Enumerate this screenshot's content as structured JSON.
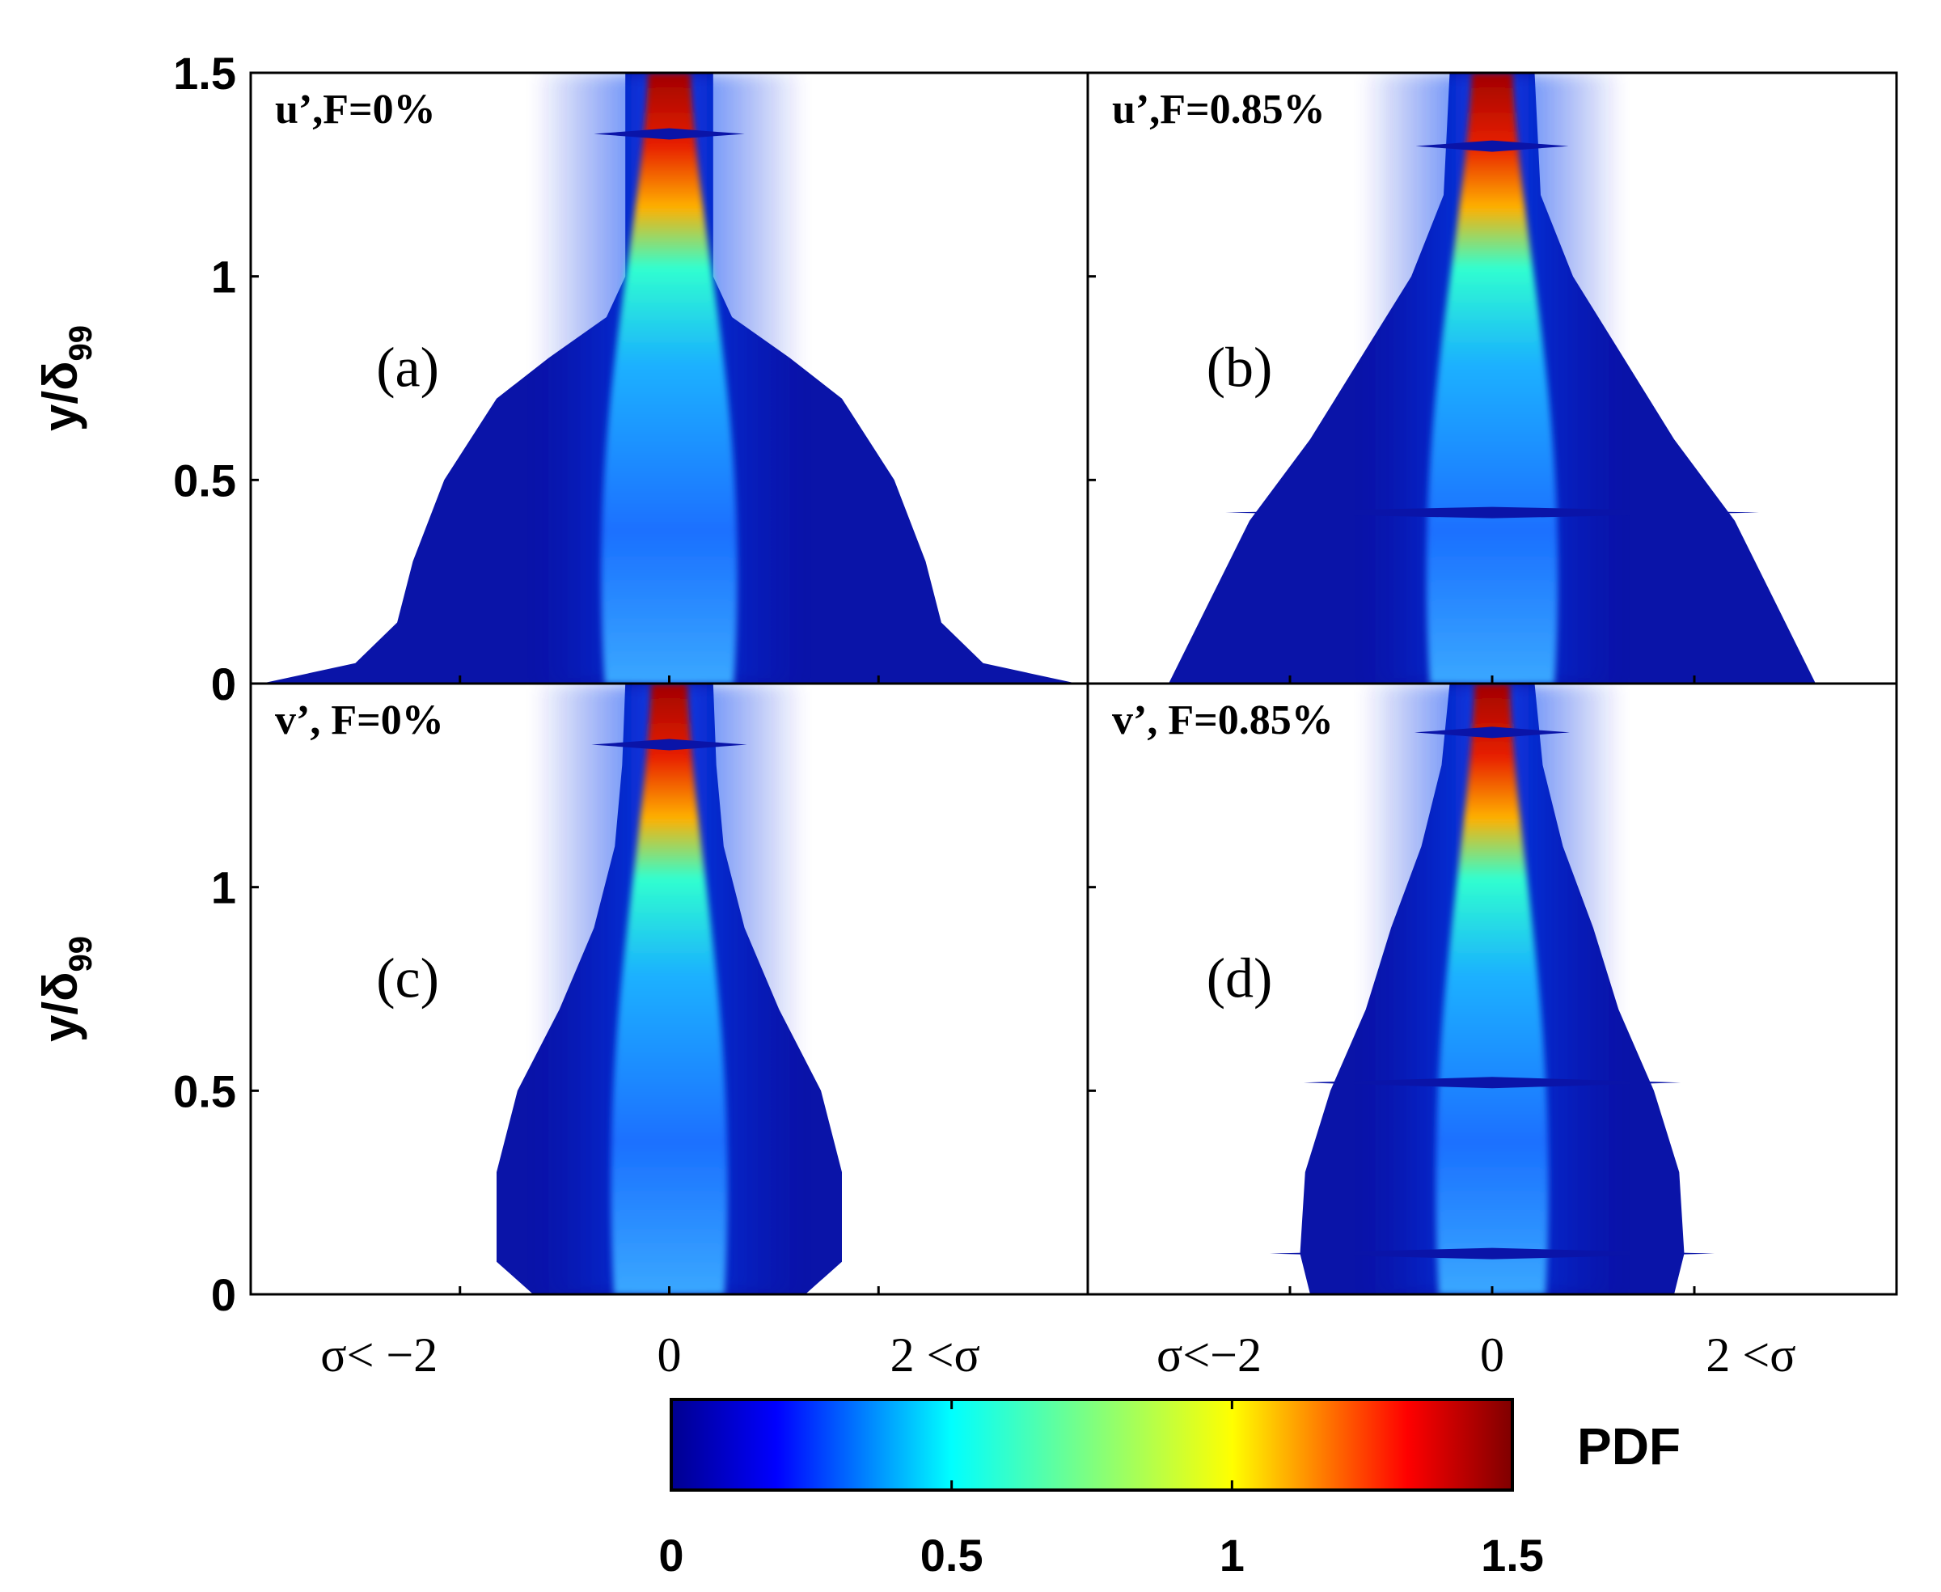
{
  "chart_data": [
    {
      "type": "heatmap",
      "panel": "a",
      "title": "u’,F=0%",
      "letter": "(a)",
      "ylabel_main": "y/δ",
      "ylabel_sub": "99",
      "ylim": [
        0,
        1.5
      ],
      "yticks": [
        0,
        0.5,
        1,
        1.5
      ],
      "xticks": [
        "σ< −2",
        "0",
        "2 <σ"
      ],
      "xlim": [
        -4,
        4
      ],
      "profile": [
        [
          0,
          3.9
        ],
        [
          0.05,
          3.0
        ],
        [
          0.15,
          2.6
        ],
        [
          0.3,
          2.45
        ],
        [
          0.5,
          2.15
        ],
        [
          0.7,
          1.65
        ],
        [
          0.8,
          1.15
        ],
        [
          0.9,
          0.6
        ],
        [
          1.0,
          0.42
        ],
        [
          1.2,
          0.42
        ],
        [
          1.5,
          0.42
        ]
      ],
      "spikes": [
        1.35
      ],
      "core_width": 0.14
    },
    {
      "type": "heatmap",
      "panel": "b",
      "title": "u’,F=0.85%",
      "letter": "(b)",
      "ylabel_main": "",
      "ylabel_sub": "",
      "ylim": [
        0,
        1.5
      ],
      "yticks": [
        0,
        0.5,
        1,
        1.5
      ],
      "xticks": [
        "σ<−2",
        "0",
        "2  <σ"
      ],
      "xlim": [
        -4,
        4
      ],
      "profile": [
        [
          0,
          3.2
        ],
        [
          0.2,
          2.8
        ],
        [
          0.4,
          2.4
        ],
        [
          0.6,
          1.8
        ],
        [
          0.8,
          1.3
        ],
        [
          1.0,
          0.8
        ],
        [
          1.2,
          0.48
        ],
        [
          1.5,
          0.42
        ]
      ],
      "spikes": [
        1.32,
        0.42
      ],
      "core_width": 0.14
    },
    {
      "type": "heatmap",
      "panel": "c",
      "title": "v’, F=0%",
      "letter": "(c)",
      "ylabel_main": "y/δ",
      "ylabel_sub": "99",
      "ylim": [
        0,
        1.5
      ],
      "yticks": [
        0,
        0.5,
        1,
        1.5
      ],
      "xticks": [],
      "xlim": [
        -4,
        4
      ],
      "profile": [
        [
          0,
          1.3
        ],
        [
          0.08,
          1.65
        ],
        [
          0.3,
          1.65
        ],
        [
          0.5,
          1.45
        ],
        [
          0.7,
          1.05
        ],
        [
          0.9,
          0.72
        ],
        [
          1.1,
          0.52
        ],
        [
          1.3,
          0.45
        ],
        [
          1.5,
          0.42
        ]
      ],
      "spikes": [
        1.35
      ],
      "core_width": 0.12
    },
    {
      "type": "heatmap",
      "panel": "d",
      "title": "v’,  F=0.85%",
      "letter": "(d)",
      "ylabel_main": "",
      "ylabel_sub": "",
      "ylim": [
        0,
        1.5
      ],
      "yticks": [
        0,
        0.5,
        1,
        1.5
      ],
      "xticks": [],
      "xlim": [
        -4,
        4
      ],
      "profile": [
        [
          0,
          1.8
        ],
        [
          0.1,
          1.9
        ],
        [
          0.3,
          1.85
        ],
        [
          0.5,
          1.6
        ],
        [
          0.7,
          1.25
        ],
        [
          0.9,
          1.0
        ],
        [
          1.1,
          0.7
        ],
        [
          1.3,
          0.5
        ],
        [
          1.5,
          0.42
        ]
      ],
      "spikes": [
        1.38,
        0.52,
        0.1
      ],
      "core_width": 0.12
    }
  ],
  "colorbar": {
    "label": "PDF",
    "range": [
      0,
      1.5
    ],
    "ticks": [
      "0",
      "0.5",
      "1",
      "1.5"
    ],
    "colormap": "jet"
  }
}
